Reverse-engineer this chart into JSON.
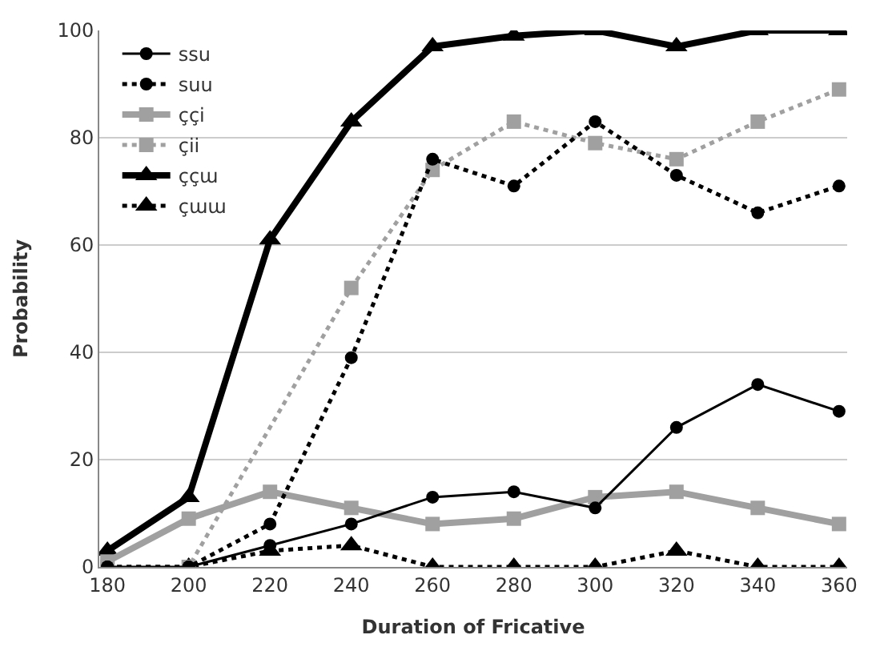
{
  "chart_data": {
    "type": "line",
    "xlabel": "Duration of Fricative",
    "ylabel": "Probability",
    "categories": [
      "180",
      "200",
      "220",
      "240",
      "260",
      "280",
      "300",
      "320",
      "340",
      "360"
    ],
    "series": [
      {
        "name": "ssu",
        "color": "#000000",
        "marker": "circle",
        "line_style": "solid",
        "values": [
          0,
          0,
          4,
          8,
          13,
          14,
          11,
          26,
          34,
          29
        ]
      },
      {
        "name": "suu",
        "color": "#000000",
        "marker": "circle",
        "line_style": "dotted",
        "values": [
          0,
          0,
          8,
          39,
          76,
          71,
          83,
          73,
          66,
          71
        ]
      },
      {
        "name": "ççi",
        "color": "#a0a0a0",
        "marker": "square",
        "line_style": "solid",
        "values": [
          1,
          9,
          14,
          11,
          8,
          9,
          13,
          14,
          11,
          8
        ]
      },
      {
        "name": "çii",
        "color": "#a0a0a0",
        "marker": "square",
        "line_style": "dotted",
        "values": [
          0,
          0,
          null,
          52,
          74,
          83,
          79,
          76,
          83,
          89
        ]
      },
      {
        "name": "ççɯ",
        "color": "#000000",
        "marker": "triangle",
        "line_style": "solid",
        "values": [
          3,
          13,
          61,
          83,
          97,
          99,
          100,
          97,
          100,
          100
        ]
      },
      {
        "name": "çɯɯ",
        "color": "#000000",
        "marker": "triangle",
        "line_style": "dotted",
        "values": [
          0,
          0,
          3,
          4,
          0,
          0,
          0,
          3,
          0,
          0
        ]
      }
    ],
    "ylim": [
      0,
      100
    ],
    "yticks": [
      0,
      20,
      40,
      60,
      80,
      100
    ],
    "grid": "y",
    "legend": "top left"
  }
}
